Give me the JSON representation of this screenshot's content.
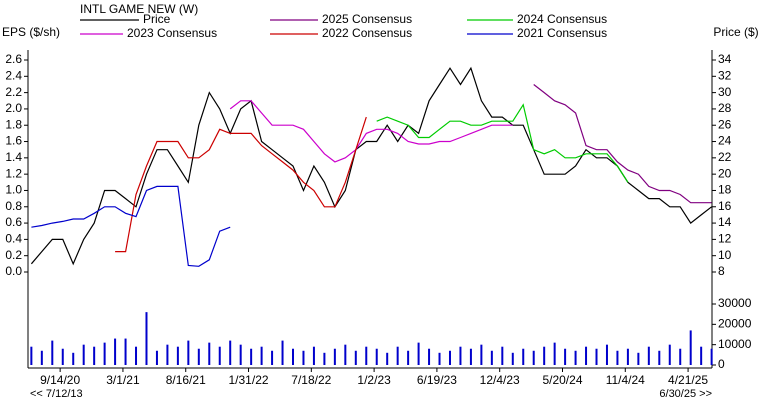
{
  "chart_data": [
    {
      "type": "line",
      "title": "INTL GAME NEW (W)",
      "y_label": "EPS ($/sh)",
      "y2_label": "Price ($)",
      "xlim": [
        "6/20/20",
        "6/24/25"
      ],
      "xticks": [
        "9/14/20",
        "3/1/21",
        "8/16/21",
        "1/31/22",
        "7/18/22",
        "1/2/23",
        "6/19/23",
        "12/4/23",
        "5/20/24",
        "11/4/24",
        "4/21/25"
      ],
      "ylim": [
        0,
        2.6
      ],
      "yticks": [
        {
          "value": 0,
          "label": "0.0"
        },
        0.2,
        0.4,
        0.6,
        0.8,
        {
          "value": 1,
          "label": "1.0"
        },
        1.2,
        1.4,
        1.6,
        1.8,
        {
          "value": 2,
          "label": "2.0"
        },
        2.2,
        2.4,
        2.6
      ],
      "y2lim": [
        8,
        34
      ],
      "y2ticks": [
        8,
        10,
        12,
        14,
        16,
        18,
        20,
        22,
        24,
        26,
        28,
        30,
        32,
        34
      ],
      "x": [
        "6/29/20",
        "7/27/20",
        "8/24/20",
        "9/21/20",
        "10/19/20",
        "11/16/20",
        "12/14/20",
        "1/11/21",
        "2/8/21",
        "3/8/21",
        "4/5/21",
        "5/3/21",
        "5/31/21",
        "6/28/21",
        "7/26/21",
        "8/23/21",
        "9/20/21",
        "10/18/21",
        "11/15/21",
        "12/13/21",
        "1/10/22",
        "2/7/22",
        "3/7/22",
        "4/4/22",
        "5/2/22",
        "5/30/22",
        "6/27/22",
        "7/25/22",
        "8/22/22",
        "9/19/22",
        "10/17/22",
        "11/14/22",
        "12/12/22",
        "1/9/23",
        "2/6/23",
        "3/6/23",
        "4/3/23",
        "5/1/23",
        "5/29/23",
        "6/26/23",
        "7/24/23",
        "8/21/23",
        "9/18/23",
        "10/16/23",
        "11/13/23",
        "12/11/23",
        "1/8/24",
        "2/5/24",
        "3/4/24",
        "4/1/24",
        "4/29/24",
        "5/27/24",
        "6/24/24",
        "7/22/24",
        "8/19/24",
        "9/16/24",
        "10/14/24",
        "11/11/24",
        "12/9/24",
        "1/6/25",
        "2/3/25",
        "3/3/25",
        "3/31/25",
        "4/28/25",
        "5/26/25",
        "6/23/25"
      ],
      "series": [
        {
          "name": "Price",
          "color": "#000000",
          "axis": "y2",
          "values": [
            9,
            10.5,
            12,
            12,
            9,
            12,
            14,
            18,
            18,
            17,
            16,
            20,
            23,
            23,
            21,
            19,
            26,
            30,
            28,
            25,
            28,
            29,
            24,
            23,
            22,
            21,
            18,
            21,
            19,
            16,
            18,
            23,
            24,
            24,
            26,
            24,
            26,
            25,
            29,
            31,
            33,
            31,
            33,
            29,
            27,
            27,
            26,
            26,
            23,
            20,
            20,
            20,
            21,
            23,
            22,
            22,
            21,
            19,
            18,
            17,
            17,
            16,
            16,
            14,
            15,
            16
          ]
        },
        {
          "name": "2025 Consensus",
          "color": "#800080",
          "values": [
            null,
            null,
            null,
            null,
            null,
            null,
            null,
            null,
            null,
            null,
            null,
            null,
            null,
            null,
            null,
            null,
            null,
            null,
            null,
            null,
            null,
            null,
            null,
            null,
            null,
            null,
            null,
            null,
            null,
            null,
            null,
            null,
            null,
            null,
            null,
            null,
            null,
            null,
            null,
            null,
            null,
            null,
            null,
            null,
            null,
            null,
            null,
            null,
            2.3,
            2.2,
            2.1,
            2.05,
            1.95,
            1.55,
            1.5,
            1.5,
            1.35,
            1.25,
            1.2,
            1.05,
            1.0,
            1.0,
            0.95,
            0.85,
            0.85,
            0.85
          ]
        },
        {
          "name": "2024 Consensus",
          "color": "#00cc00",
          "values": [
            null,
            null,
            null,
            null,
            null,
            null,
            null,
            null,
            null,
            null,
            null,
            null,
            null,
            null,
            null,
            null,
            null,
            null,
            null,
            null,
            null,
            null,
            null,
            null,
            null,
            null,
            null,
            null,
            null,
            null,
            null,
            null,
            null,
            1.85,
            1.9,
            1.85,
            1.8,
            1.65,
            1.65,
            1.75,
            1.85,
            1.85,
            1.8,
            1.8,
            1.85,
            1.85,
            1.85,
            2.05,
            1.5,
            1.45,
            1.5,
            1.4,
            1.4,
            1.45,
            1.45,
            1.45,
            1.3,
            1.1,
            null,
            null,
            null,
            null,
            null,
            null,
            null,
            null
          ]
        },
        {
          "name": "2023 Consensus",
          "color": "#cc00cc",
          "values": [
            null,
            null,
            null,
            null,
            null,
            null,
            null,
            null,
            null,
            null,
            null,
            null,
            null,
            null,
            null,
            null,
            null,
            null,
            null,
            2.0,
            2.1,
            2.1,
            1.95,
            1.8,
            1.8,
            1.8,
            1.75,
            1.6,
            1.45,
            1.35,
            1.4,
            1.5,
            1.7,
            1.75,
            1.75,
            1.7,
            1.6,
            1.57,
            1.57,
            1.6,
            1.6,
            1.65,
            1.7,
            1.75,
            1.8,
            1.8,
            1.8,
            null,
            null,
            null,
            null,
            null,
            null,
            null,
            null,
            null,
            null,
            null,
            null,
            null,
            null,
            null,
            null,
            null,
            null,
            null
          ]
        },
        {
          "name": "2022 Consensus",
          "color": "#cc0000",
          "values": [
            null,
            null,
            null,
            null,
            null,
            null,
            null,
            null,
            0.25,
            0.25,
            0.95,
            1.3,
            1.6,
            1.6,
            1.6,
            1.4,
            1.4,
            1.5,
            1.75,
            1.7,
            1.7,
            1.7,
            1.55,
            1.45,
            1.35,
            1.25,
            1.1,
            1.0,
            0.8,
            0.8,
            1.1,
            1.5,
            1.9,
            null,
            null,
            null,
            null,
            null,
            null,
            null,
            null,
            null,
            null,
            null,
            null,
            null,
            null,
            null,
            null,
            null,
            null,
            null,
            null,
            null,
            null,
            null,
            null,
            null,
            null,
            null,
            null,
            null,
            null,
            null,
            null,
            null
          ]
        },
        {
          "name": "2021 Consensus",
          "color": "#0000cc",
          "values": [
            0.55,
            0.57,
            0.6,
            0.62,
            0.65,
            0.65,
            0.72,
            0.8,
            0.8,
            0.72,
            0.68,
            1.0,
            1.05,
            1.05,
            1.05,
            0.08,
            0.07,
            0.15,
            0.5,
            0.55,
            null,
            null,
            null,
            null,
            null,
            null,
            null,
            null,
            null,
            null,
            null,
            null,
            null,
            null,
            null,
            null,
            null,
            null,
            null,
            null,
            null,
            null,
            null,
            null,
            null,
            null,
            null,
            null,
            null,
            null,
            null,
            null,
            null,
            null,
            null,
            null,
            null,
            null,
            null,
            null,
            null,
            null,
            null,
            null,
            null,
            null
          ]
        }
      ]
    },
    {
      "type": "bar",
      "color": "#0000cc",
      "xlim": [
        "6/20/20",
        "6/24/25"
      ],
      "ylim": [
        0,
        30000
      ],
      "yticks": [
        0,
        10000,
        20000,
        30000
      ],
      "x": [
        "6/29/20",
        "7/27/20",
        "8/24/20",
        "9/21/20",
        "10/19/20",
        "11/16/20",
        "12/14/20",
        "1/11/21",
        "2/8/21",
        "3/8/21",
        "4/5/21",
        "5/3/21",
        "5/31/21",
        "6/28/21",
        "7/26/21",
        "8/23/21",
        "9/20/21",
        "10/18/21",
        "11/15/21",
        "12/13/21",
        "1/10/22",
        "2/7/22",
        "3/7/22",
        "4/4/22",
        "5/2/22",
        "5/30/22",
        "6/27/22",
        "7/25/22",
        "8/22/22",
        "9/19/22",
        "10/17/22",
        "11/14/22",
        "12/12/22",
        "1/9/23",
        "2/6/23",
        "3/6/23",
        "4/3/23",
        "5/1/23",
        "5/29/23",
        "6/26/23",
        "7/24/23",
        "8/21/23",
        "9/18/23",
        "10/16/23",
        "11/13/23",
        "12/11/23",
        "1/8/24",
        "2/5/24",
        "3/4/24",
        "4/1/24",
        "4/29/24",
        "5/27/24",
        "6/24/24",
        "7/22/24",
        "8/19/24",
        "9/16/24",
        "10/14/24",
        "11/11/24",
        "12/9/24",
        "1/6/25",
        "2/3/25",
        "3/3/25",
        "3/31/25",
        "4/28/25",
        "5/26/25",
        "6/23/25"
      ],
      "values": [
        9000,
        7000,
        12000,
        8000,
        6000,
        10000,
        9000,
        11000,
        13000,
        13000,
        9000,
        26000,
        7000,
        10000,
        9000,
        12000,
        8000,
        11000,
        9000,
        12000,
        10000,
        8000,
        9000,
        7000,
        12000,
        8000,
        7000,
        9000,
        6000,
        8000,
        10000,
        7000,
        9000,
        8000,
        6000,
        9000,
        7000,
        11000,
        8000,
        6000,
        7000,
        9000,
        8000,
        10000,
        7000,
        9000,
        6000,
        8000,
        7000,
        9000,
        11000,
        8000,
        7000,
        9000,
        8000,
        10000,
        7000,
        8000,
        6000,
        9000,
        7000,
        10000,
        8000,
        17000,
        9000,
        8000
      ]
    }
  ],
  "navigation": {
    "back": "<< 7/12/13",
    "forward": "6/30/25 >>"
  }
}
